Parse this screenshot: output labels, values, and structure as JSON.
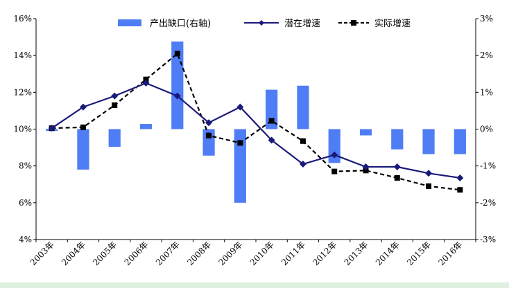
{
  "chart_data": {
    "type": "bar+line",
    "categories": [
      "2003年",
      "2004年",
      "2005年",
      "2006年",
      "2007年",
      "2008年",
      "2009年",
      "2010年",
      "2011年",
      "2012年",
      "2013年",
      "2014年",
      "2015年",
      "2016年"
    ],
    "left_axis": {
      "ylim": [
        4,
        16
      ],
      "ticks": [
        "4%",
        "6%",
        "8%",
        "10%",
        "12%",
        "14%",
        "16%"
      ]
    },
    "right_axis": {
      "ylim": [
        -3,
        3
      ],
      "ticks": [
        "-3%",
        "-2%",
        "-1%",
        "0%",
        "1%",
        "2%",
        "3%"
      ]
    },
    "series": [
      {
        "name": "产出缺口(右轴)",
        "type": "bar",
        "axis": "right",
        "color": "#4f7df5",
        "values": [
          -0.05,
          -1.1,
          -0.48,
          0.14,
          2.38,
          -0.72,
          -2.0,
          1.07,
          1.18,
          -0.92,
          -0.17,
          -0.55,
          -0.68,
          -0.68
        ]
      },
      {
        "name": "潜在增速",
        "type": "line",
        "axis": "left",
        "color": "#1a1a7a",
        "marker": "diamond",
        "dash": "solid",
        "values": [
          10.05,
          11.2,
          11.8,
          12.5,
          11.8,
          10.35,
          11.2,
          9.4,
          8.1,
          8.6,
          7.95,
          7.95,
          7.6,
          7.35
        ]
      },
      {
        "name": "实际增速",
        "type": "line",
        "axis": "left",
        "color": "#000000",
        "marker": "square",
        "dash": "dashed",
        "values": [
          10.05,
          10.1,
          11.3,
          12.7,
          14.1,
          9.65,
          9.25,
          10.45,
          9.35,
          7.7,
          7.75,
          7.35,
          6.9,
          6.7
        ]
      }
    ]
  }
}
